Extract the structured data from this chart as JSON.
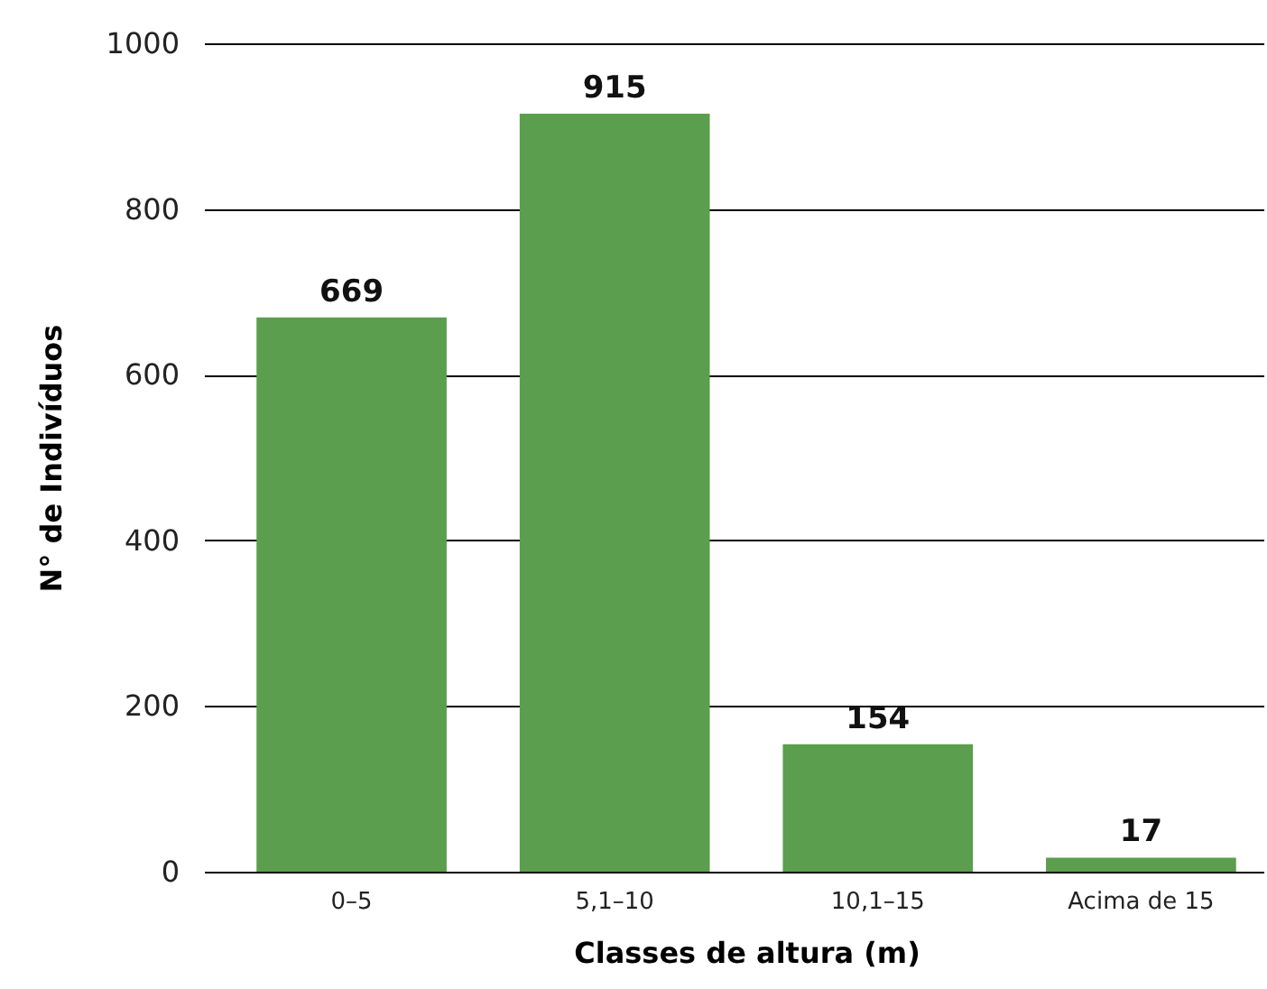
{
  "chart_data": {
    "type": "bar",
    "xlabel": "Classes de altura (m)",
    "ylabel": "N° de Indivíduos",
    "categories": [
      "0–5",
      "5,1–10",
      "10,1–15",
      "Acima de 15"
    ],
    "values": [
      669,
      915,
      154,
      17
    ],
    "color": "#5b9e4d",
    "ylim": [
      0,
      1000
    ],
    "yticks": [
      0,
      200,
      400,
      600,
      800,
      1000
    ],
    "grid": "y",
    "data_labels": true
  }
}
